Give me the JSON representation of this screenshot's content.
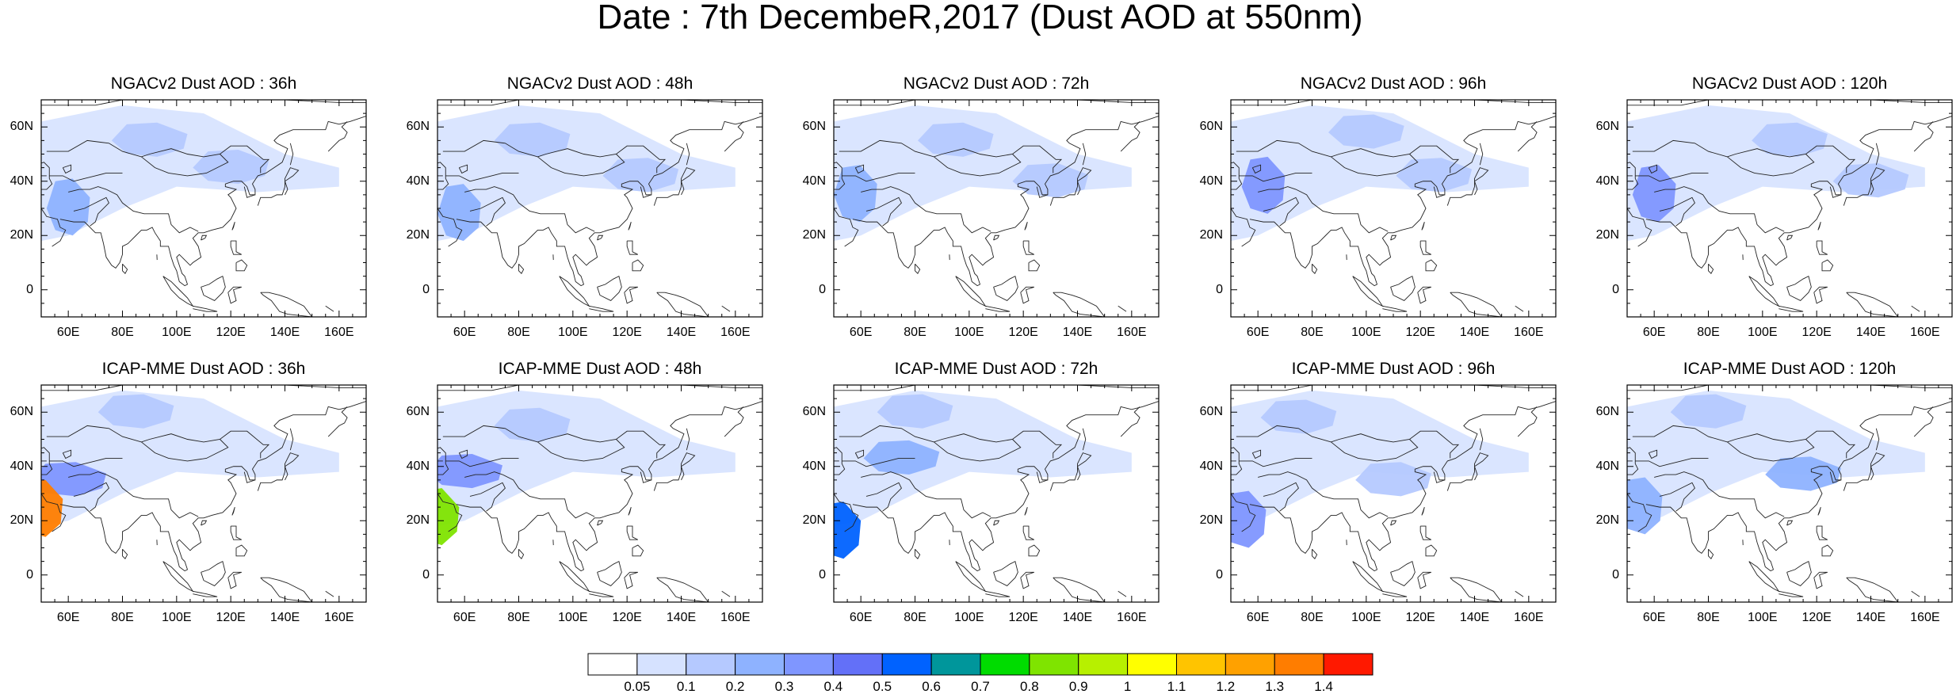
{
  "title": "Date : 7th DecembeR,2017 (Dust AOD at 550nm)",
  "map_axes": {
    "lon_ticks": [
      "60E",
      "80E",
      "100E",
      "120E",
      "140E",
      "160E"
    ],
    "lat_ticks": [
      "60N",
      "40N",
      "20N",
      "0"
    ],
    "lon_range": [
      50,
      170
    ],
    "lat_range": [
      -10,
      70
    ]
  },
  "panels": [
    {
      "title": "NGACv2 Dust AOD : 36h",
      "model": "NGACv2",
      "forecast_hour": 36,
      "plumes": [
        {
          "lon": 90,
          "lat": 55,
          "level": 0.1
        },
        {
          "lon": 120,
          "lat": 45,
          "level": 0.1
        },
        {
          "lon": 60,
          "lat": 30,
          "level": 0.2
        }
      ]
    },
    {
      "title": "NGACv2 Dust AOD : 48h",
      "model": "NGACv2",
      "forecast_hour": 48,
      "plumes": [
        {
          "lon": 85,
          "lat": 55,
          "level": 0.1
        },
        {
          "lon": 125,
          "lat": 42,
          "level": 0.1
        },
        {
          "lon": 58,
          "lat": 28,
          "level": 0.2
        }
      ]
    },
    {
      "title": "NGACv2 Dust AOD : 72h",
      "model": "NGACv2",
      "forecast_hour": 72,
      "plumes": [
        {
          "lon": 95,
          "lat": 55,
          "level": 0.1
        },
        {
          "lon": 130,
          "lat": 40,
          "level": 0.1
        },
        {
          "lon": 58,
          "lat": 35,
          "level": 0.2
        }
      ]
    },
    {
      "title": "NGACv2 Dust AOD : 96h",
      "model": "NGACv2",
      "forecast_hour": 96,
      "plumes": [
        {
          "lon": 100,
          "lat": 58,
          "level": 0.1
        },
        {
          "lon": 125,
          "lat": 42,
          "level": 0.1
        },
        {
          "lon": 62,
          "lat": 38,
          "level": 0.3
        }
      ]
    },
    {
      "title": "NGACv2 Dust AOD : 120h",
      "model": "NGACv2",
      "forecast_hour": 120,
      "plumes": [
        {
          "lon": 110,
          "lat": 55,
          "level": 0.1
        },
        {
          "lon": 140,
          "lat": 40,
          "level": 0.1
        },
        {
          "lon": 60,
          "lat": 35,
          "level": 0.3
        }
      ]
    },
    {
      "title": "ICAP-MME Dust AOD : 36h",
      "model": "ICAP-MME",
      "forecast_hour": 36,
      "plumes": [
        {
          "lon": 85,
          "lat": 60,
          "level": 0.1
        },
        {
          "lon": 60,
          "lat": 35,
          "level": 0.3
        },
        {
          "lon": 50,
          "lat": 24,
          "level": 1.3
        }
      ]
    },
    {
      "title": "ICAP-MME Dust AOD : 48h",
      "model": "ICAP-MME",
      "forecast_hour": 48,
      "plumes": [
        {
          "lon": 85,
          "lat": 55,
          "level": 0.1
        },
        {
          "lon": 60,
          "lat": 38,
          "level": 0.3
        },
        {
          "lon": 50,
          "lat": 21,
          "level": 0.8
        }
      ]
    },
    {
      "title": "ICAP-MME Dust AOD : 72h",
      "model": "ICAP-MME",
      "forecast_hour": 72,
      "plumes": [
        {
          "lon": 80,
          "lat": 60,
          "level": 0.1
        },
        {
          "lon": 75,
          "lat": 43,
          "level": 0.2
        },
        {
          "lon": 52,
          "lat": 16,
          "level": 0.5
        }
      ]
    },
    {
      "title": "ICAP-MME Dust AOD : 96h",
      "model": "ICAP-MME",
      "forecast_hour": 96,
      "plumes": [
        {
          "lon": 75,
          "lat": 58,
          "level": 0.1
        },
        {
          "lon": 110,
          "lat": 35,
          "level": 0.1
        },
        {
          "lon": 55,
          "lat": 20,
          "level": 0.3
        }
      ]
    },
    {
      "title": "ICAP-MME Dust AOD : 120h",
      "model": "ICAP-MME",
      "forecast_hour": 120,
      "plumes": [
        {
          "lon": 80,
          "lat": 60,
          "level": 0.1
        },
        {
          "lon": 115,
          "lat": 37,
          "level": 0.2
        },
        {
          "lon": 55,
          "lat": 25,
          "level": 0.2
        }
      ]
    }
  ],
  "colorbar": {
    "labels": [
      "0.05",
      "0.1",
      "0.2",
      "0.3",
      "0.4",
      "0.5",
      "0.6",
      "0.7",
      "0.8",
      "0.9",
      "1",
      "1.1",
      "1.2",
      "1.3",
      "1.4"
    ],
    "colors": [
      "#ffffff",
      "#d6e2ff",
      "#b5c9ff",
      "#8eb2ff",
      "#7f96ff",
      "#6370f8",
      "#0062ff",
      "#00969b",
      "#00dc00",
      "#7fe400",
      "#b7f000",
      "#ffff00",
      "#ffc400",
      "#ffa100",
      "#ff7d00",
      "#ff1900"
    ]
  }
}
